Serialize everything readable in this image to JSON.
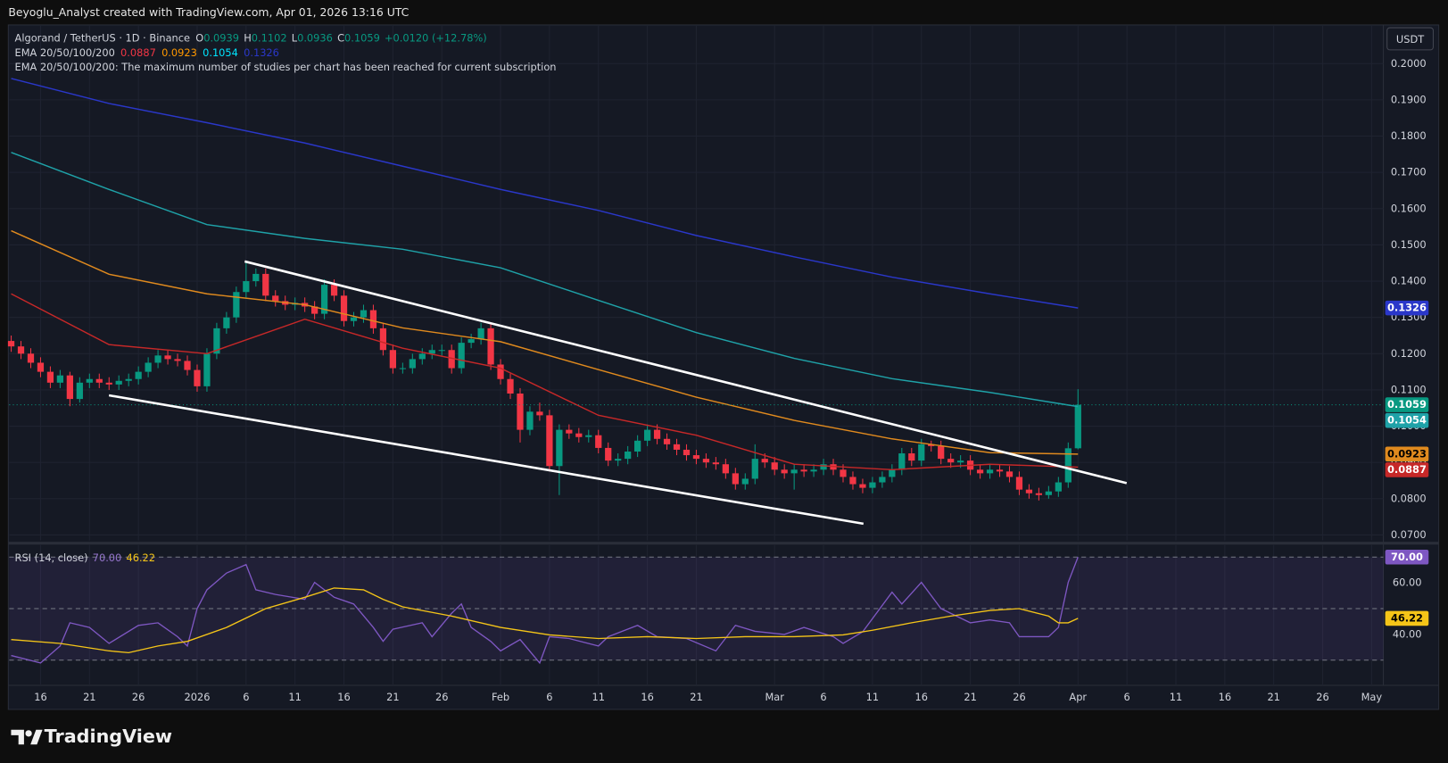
{
  "header": {
    "credit": "Beyoglu_Analyst created with TradingView.com, Apr 01, 2026 13:16 UTC",
    "currency": "USDT"
  },
  "footer": {
    "brand": "TradingView"
  },
  "chart_data": [
    {
      "type": "candlestick",
      "title": "Algorand / TetherUS · 1D · Binance",
      "ohlc_labels": [
        "O",
        "H",
        "L",
        "C"
      ],
      "change": "+0.0120 (+12.78%)",
      "indicator": "EMA 20/50/100/200",
      "notice": "EMA 20/50/100/200: The maximum number of studies per chart has been reached for current subscription",
      "up_color": "#089981",
      "down_color": "#f23645",
      "xlim": [
        -0.2,
        140.2
      ],
      "ylim": [
        0.0685,
        0.2099
      ],
      "yticks": [
        {
          "value": 0.2,
          "label": "0.2000"
        },
        {
          "value": 0.19,
          "label": "0.1900"
        },
        {
          "value": 0.18,
          "label": "0.1800"
        },
        {
          "value": 0.17,
          "label": "0.1700"
        },
        {
          "value": 0.16,
          "label": "0.1600"
        },
        {
          "value": 0.15,
          "label": "0.1500"
        },
        {
          "value": 0.14,
          "label": "0.1400"
        },
        {
          "value": 0.13,
          "label": "0.1300"
        },
        {
          "value": 0.12,
          "label": "0.1200"
        },
        {
          "value": 0.11,
          "label": "0.1100"
        },
        {
          "value": 0.1,
          "label": "0.1000"
        },
        {
          "value": 0.09,
          "label": "0.0900"
        },
        {
          "value": 0.08,
          "label": "0.0800"
        },
        {
          "value": 0.07,
          "label": "0.0700"
        }
      ],
      "grid": true,
      "open": [
        0.1235,
        0.122,
        0.12,
        0.1175,
        0.115,
        0.112,
        0.114,
        0.1075,
        0.112,
        0.113,
        0.112,
        0.1115,
        0.1125,
        0.113,
        0.115,
        0.1175,
        0.1195,
        0.1185,
        0.118,
        0.1155,
        0.111,
        0.12,
        0.127,
        0.13,
        0.137,
        0.14,
        0.142,
        0.136,
        0.1345,
        0.1335,
        0.134,
        0.133,
        0.131,
        0.139,
        0.136,
        0.129,
        0.13,
        0.132,
        0.127,
        0.121,
        0.116,
        0.116,
        0.1185,
        0.12,
        0.121,
        0.121,
        0.116,
        0.123,
        0.124,
        0.127,
        0.117,
        0.113,
        0.109,
        0.099,
        0.104,
        0.103,
        0.089,
        0.099,
        0.098,
        0.097,
        0.0975,
        0.094,
        0.0905,
        0.091,
        0.093,
        0.096,
        0.099,
        0.0965,
        0.095,
        0.0935,
        0.092,
        0.091,
        0.09,
        0.0895,
        0.087,
        0.084,
        0.0855,
        0.091,
        0.09,
        0.088,
        0.087,
        0.088,
        0.0875,
        0.088,
        0.0895,
        0.088,
        0.086,
        0.084,
        0.083,
        0.0845,
        0.086,
        0.088,
        0.0925,
        0.0905,
        0.095,
        0.0945,
        0.091,
        0.09,
        0.0905,
        0.088,
        0.087,
        0.088,
        0.0875,
        0.086,
        0.0825,
        0.0815,
        0.081,
        0.082,
        0.0845,
        0.0939
      ],
      "high": [
        0.125,
        0.1235,
        0.1215,
        0.119,
        0.1165,
        0.1155,
        0.115,
        0.1135,
        0.1145,
        0.1145,
        0.1135,
        0.114,
        0.1145,
        0.1165,
        0.119,
        0.121,
        0.121,
        0.12,
        0.1195,
        0.117,
        0.1215,
        0.1285,
        0.1315,
        0.1385,
        0.1455,
        0.1435,
        0.1435,
        0.1375,
        0.136,
        0.1355,
        0.1355,
        0.1345,
        0.1405,
        0.1405,
        0.1375,
        0.1315,
        0.1335,
        0.1335,
        0.1285,
        0.1225,
        0.1175,
        0.12,
        0.1215,
        0.1225,
        0.1225,
        0.1225,
        0.1245,
        0.1255,
        0.1285,
        0.1285,
        0.1185,
        0.1145,
        0.1105,
        0.1055,
        0.1065,
        0.1045,
        0.1005,
        0.1005,
        0.0995,
        0.099,
        0.099,
        0.0955,
        0.0925,
        0.0945,
        0.0975,
        0.1005,
        0.1005,
        0.098,
        0.0965,
        0.095,
        0.0935,
        0.0925,
        0.0915,
        0.091,
        0.0885,
        0.087,
        0.095,
        0.0925,
        0.0915,
        0.0895,
        0.0895,
        0.0895,
        0.0895,
        0.091,
        0.091,
        0.0895,
        0.0875,
        0.0855,
        0.086,
        0.0875,
        0.0895,
        0.094,
        0.094,
        0.0965,
        0.096,
        0.096,
        0.0925,
        0.092,
        0.092,
        0.0895,
        0.0895,
        0.0895,
        0.089,
        0.0875,
        0.084,
        0.083,
        0.0835,
        0.086,
        0.0955,
        0.1102
      ],
      "low": [
        0.1205,
        0.1185,
        0.116,
        0.1135,
        0.1105,
        0.1105,
        0.1055,
        0.1065,
        0.1105,
        0.1105,
        0.11,
        0.11,
        0.111,
        0.1115,
        0.1135,
        0.116,
        0.117,
        0.1165,
        0.114,
        0.1095,
        0.1095,
        0.1185,
        0.1255,
        0.1285,
        0.1355,
        0.1385,
        0.1345,
        0.133,
        0.132,
        0.132,
        0.1315,
        0.1295,
        0.1295,
        0.1345,
        0.1275,
        0.1275,
        0.1285,
        0.1255,
        0.1195,
        0.1145,
        0.1145,
        0.1145,
        0.117,
        0.1185,
        0.1195,
        0.1145,
        0.1145,
        0.1215,
        0.1225,
        0.1155,
        0.1115,
        0.1075,
        0.0955,
        0.0975,
        0.1015,
        0.0875,
        0.081,
        0.0965,
        0.0955,
        0.0955,
        0.0925,
        0.089,
        0.089,
        0.0895,
        0.0915,
        0.0945,
        0.095,
        0.0935,
        0.092,
        0.0905,
        0.0895,
        0.0885,
        0.088,
        0.0855,
        0.0825,
        0.0825,
        0.084,
        0.0885,
        0.0865,
        0.0855,
        0.0825,
        0.086,
        0.086,
        0.0865,
        0.0865,
        0.0845,
        0.0825,
        0.0815,
        0.0815,
        0.083,
        0.0845,
        0.0865,
        0.089,
        0.089,
        0.093,
        0.0895,
        0.0885,
        0.0885,
        0.0865,
        0.0855,
        0.0855,
        0.086,
        0.0845,
        0.081,
        0.08,
        0.0795,
        0.08,
        0.0805,
        0.083,
        0.0936
      ],
      "close": [
        0.122,
        0.12,
        0.1175,
        0.115,
        0.112,
        0.114,
        0.1075,
        0.112,
        0.113,
        0.112,
        0.1115,
        0.1125,
        0.113,
        0.115,
        0.1175,
        0.1195,
        0.1185,
        0.118,
        0.1155,
        0.111,
        0.12,
        0.127,
        0.13,
        0.137,
        0.14,
        0.142,
        0.136,
        0.1345,
        0.1335,
        0.134,
        0.133,
        0.131,
        0.139,
        0.136,
        0.129,
        0.13,
        0.132,
        0.127,
        0.121,
        0.116,
        0.116,
        0.1185,
        0.12,
        0.121,
        0.121,
        0.116,
        0.123,
        0.124,
        0.127,
        0.117,
        0.113,
        0.109,
        0.099,
        0.104,
        0.103,
        0.089,
        0.099,
        0.098,
        0.097,
        0.0975,
        0.094,
        0.0905,
        0.091,
        0.093,
        0.096,
        0.099,
        0.0965,
        0.095,
        0.0935,
        0.092,
        0.091,
        0.09,
        0.0895,
        0.087,
        0.084,
        0.0855,
        0.091,
        0.09,
        0.088,
        0.087,
        0.088,
        0.0875,
        0.088,
        0.0895,
        0.088,
        0.086,
        0.084,
        0.083,
        0.0845,
        0.086,
        0.088,
        0.0925,
        0.0905,
        0.095,
        0.0945,
        0.091,
        0.09,
        0.0905,
        0.088,
        0.087,
        0.088,
        0.0875,
        0.086,
        0.0825,
        0.0815,
        0.081,
        0.082,
        0.0845,
        0.0939,
        0.1059
      ],
      "overlays": [
        {
          "color": "#c62828",
          "x": [
            0,
            10,
            20,
            30,
            40,
            50,
            60,
            70,
            80,
            90,
            100,
            109
          ],
          "values": [
            0.1365,
            0.1225,
            0.12,
            0.1295,
            0.1215,
            0.116,
            0.103,
            0.0975,
            0.0895,
            0.088,
            0.0895,
            0.0887
          ]
        },
        {
          "color": "#e08a1e",
          "x": [
            0,
            10,
            20,
            30,
            40,
            50,
            60,
            70,
            80,
            90,
            100,
            109
          ],
          "values": [
            0.1539,
            0.1419,
            0.1365,
            0.1335,
            0.1271,
            0.1233,
            0.1156,
            0.108,
            0.1016,
            0.0965,
            0.0927,
            0.0923
          ]
        },
        {
          "color": "#1fa2a8",
          "x": [
            0,
            10,
            20,
            30,
            40,
            50,
            60,
            70,
            80,
            90,
            100,
            109
          ],
          "values": [
            0.1755,
            0.1653,
            0.1556,
            0.1518,
            0.1488,
            0.1437,
            0.1347,
            0.1258,
            0.1187,
            0.1131,
            0.1093,
            0.1054
          ]
        },
        {
          "color": "#2a37c9",
          "x": [
            0,
            10,
            20,
            30,
            40,
            50,
            60,
            70,
            80,
            90,
            100,
            109
          ],
          "values": [
            0.1959,
            0.189,
            0.1837,
            0.1781,
            0.1717,
            0.1653,
            0.1595,
            0.1526,
            0.1467,
            0.1411,
            0.1365,
            0.1326
          ]
        }
      ]
    },
    {
      "type": "line",
      "title": "RSI (14, close)",
      "xlim": [
        -0.2,
        140.2
      ],
      "xticks": [
        {
          "value": 3,
          "label": "16"
        },
        {
          "value": 8,
          "label": "21"
        },
        {
          "value": 13,
          "label": "26"
        },
        {
          "value": 19,
          "label": "2026"
        },
        {
          "value": 24,
          "label": "6"
        },
        {
          "value": 29,
          "label": "11"
        },
        {
          "value": 34,
          "label": "16"
        },
        {
          "value": 39,
          "label": "21"
        },
        {
          "value": 44,
          "label": "26"
        },
        {
          "value": 50,
          "label": "Feb"
        },
        {
          "value": 55,
          "label": "6"
        },
        {
          "value": 60,
          "label": "11"
        },
        {
          "value": 65,
          "label": "16"
        },
        {
          "value": 70,
          "label": "21"
        },
        {
          "value": 78,
          "label": "Mar"
        },
        {
          "value": 83,
          "label": "6"
        },
        {
          "value": 88,
          "label": "11"
        },
        {
          "value": 93,
          "label": "16"
        },
        {
          "value": 98,
          "label": "21"
        },
        {
          "value": 103,
          "label": "26"
        },
        {
          "value": 109,
          "label": "Apr"
        },
        {
          "value": 114,
          "label": "6"
        },
        {
          "value": 119,
          "label": "11"
        },
        {
          "value": 124,
          "label": "16"
        },
        {
          "value": 129,
          "label": "21"
        },
        {
          "value": 134,
          "label": "26"
        },
        {
          "value": 139,
          "label": "May"
        }
      ],
      "ylim": [
        20.2,
        74.7
      ],
      "yticks": [
        {
          "value": 60,
          "label": "60.00"
        },
        {
          "value": 40,
          "label": "40.00"
        }
      ],
      "bands": [
        70,
        50,
        30
      ],
      "band_color": "#7e57c2",
      "series": [
        {
          "color": "#7e57c2",
          "last_value_label": "70.00",
          "x": [
            0,
            3,
            5,
            6,
            8,
            10,
            13,
            15,
            17,
            18,
            19,
            20,
            22,
            24,
            25,
            27,
            30,
            31,
            33,
            35,
            37,
            38,
            39,
            42,
            43,
            45,
            46,
            47,
            49,
            50,
            52,
            54,
            55,
            57,
            60,
            61,
            64,
            66,
            69,
            72,
            74,
            76,
            79,
            81,
            84,
            85,
            87,
            90,
            91,
            93,
            95,
            98,
            100,
            102,
            103,
            106,
            107,
            108,
            109
          ],
          "values": [
            31.8,
            28.9,
            35.5,
            44.5,
            42.7,
            36.5,
            43.5,
            44.5,
            39.1,
            35.5,
            50,
            57.3,
            63.8,
            67.1,
            57.3,
            55.5,
            53.6,
            60.2,
            54.4,
            51.8,
            42.7,
            37.3,
            42,
            44.5,
            39.1,
            48.2,
            51.8,
            42.7,
            37.3,
            33.6,
            38,
            28.9,
            39.1,
            38.4,
            35.5,
            39.1,
            43.5,
            39.1,
            38.4,
            33.6,
            43.5,
            41.2,
            40,
            42.7,
            39.1,
            36.5,
            41,
            56.4,
            51.8,
            60.2,
            50,
            44.5,
            45.6,
            44.5,
            39.1,
            39.1,
            42.7,
            60.2,
            70
          ]
        },
        {
          "color": "#f5c518",
          "x": [
            0,
            5,
            10,
            12,
            15,
            18,
            22,
            26,
            30,
            33,
            36,
            38,
            40,
            45,
            50,
            55,
            60,
            65,
            70,
            75,
            80,
            85,
            88,
            92,
            96,
            100,
            103,
            106,
            107,
            108,
            109
          ],
          "values": [
            38,
            36.5,
            33.6,
            32.9,
            35.5,
            37.3,
            42.7,
            50,
            54.4,
            58,
            57.3,
            53.6,
            50.7,
            47.1,
            42.7,
            39.8,
            38.4,
            39.1,
            38.4,
            39.1,
            39.1,
            39.8,
            41.6,
            44.5,
            47.1,
            49.3,
            50,
            47.1,
            44.5,
            44.5,
            46.22
          ]
        }
      ]
    }
  ]
}
